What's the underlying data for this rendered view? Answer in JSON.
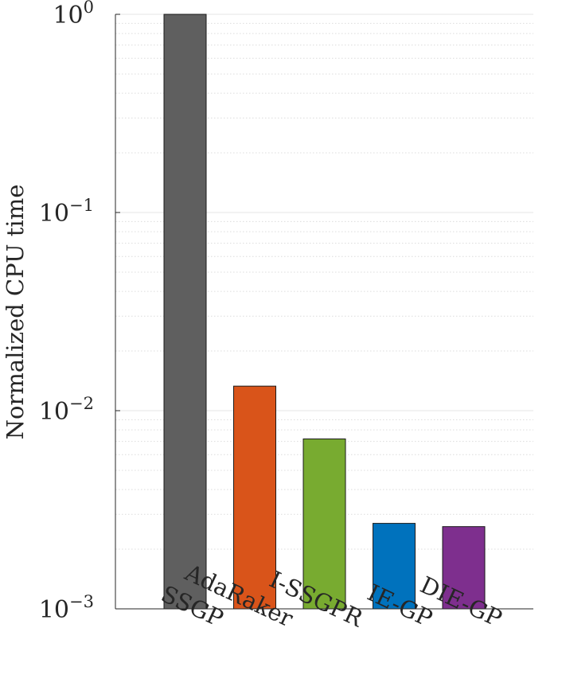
{
  "chart_data": {
    "type": "bar",
    "categories": [
      "SSGP",
      "AdaRaker",
      "I-SSGPR",
      "IE-GP",
      "DIE-GP"
    ],
    "values": [
      1.0,
      0.0133,
      0.0072,
      0.0027,
      0.0026
    ],
    "colors": [
      "#5f5f5f",
      "#d9541a",
      "#78ab30",
      "#0072bd",
      "#7e2f8e"
    ],
    "title": "",
    "xlabel": "",
    "ylabel": "Normalized CPU time",
    "yscale": "log",
    "ylim": [
      0.001,
      1
    ],
    "yticks": [
      {
        "value": 0.001,
        "base": "10",
        "exp": "−3"
      },
      {
        "value": 0.01,
        "base": "10",
        "exp": "−2"
      },
      {
        "value": 0.1,
        "base": "10",
        "exp": "−1"
      },
      {
        "value": 1,
        "base": "10",
        "exp": "0"
      }
    ],
    "grid": true,
    "minor_grid": true
  }
}
